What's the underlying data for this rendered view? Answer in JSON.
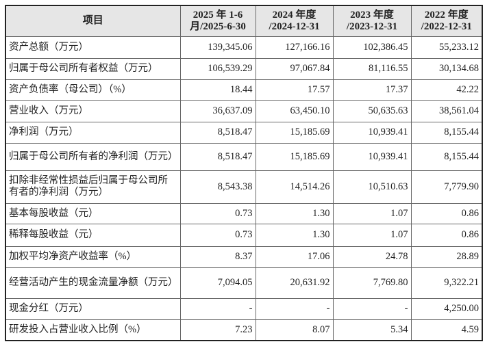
{
  "table": {
    "headers": [
      "项目",
      "2025年1-6月/2025-6-30",
      "2024年度/2024-12-31",
      "2023年度/2023-12-31",
      "2022年度/2022-12-31"
    ],
    "header_lines": [
      [
        "项目"
      ],
      [
        "2025 年 1-6",
        "月/2025-6-30"
      ],
      [
        "2024 年度",
        "/2024-12-31"
      ],
      [
        "2023 年度",
        "/2023-12-31"
      ],
      [
        "2022 年度",
        "/2022-12-31"
      ]
    ],
    "rows": [
      [
        "资产总额（万元）",
        "139,345.06",
        "127,166.16",
        "102,386.45",
        "55,233.12"
      ],
      [
        "归属于母公司所有者权益（万元）",
        "106,539.29",
        "97,067.84",
        "81,116.55",
        "30,134.68"
      ],
      [
        "资产负债率（母公司）（%）",
        "18.44",
        "17.57",
        "17.37",
        "42.22"
      ],
      [
        "营业收入（万元）",
        "36,637.09",
        "63,450.10",
        "50,635.63",
        "38,561.04"
      ],
      [
        "净利润（万元）",
        "8,518.47",
        "15,185.69",
        "10,939.41",
        "8,155.44"
      ],
      [
        "归属于母公司所有者的净利润（万元）",
        "8,518.47",
        "15,185.69",
        "10,939.41",
        "8,155.44"
      ],
      [
        "扣除非经常性损益后归属于母公司所有者的净利润（万元）",
        "8,543.38",
        "14,514.26",
        "10,510.63",
        "7,779.90"
      ],
      [
        "基本每股收益（元）",
        "0.73",
        "1.30",
        "1.07",
        "0.86"
      ],
      [
        "稀释每股收益（元）",
        "0.73",
        "1.30",
        "1.07",
        "0.86"
      ],
      [
        "加权平均净资产收益率（%）",
        "8.37",
        "17.06",
        "24.78",
        "28.89"
      ],
      [
        "经营活动产生的现金流量净额（万元）",
        "7,094.05",
        "20,631.92",
        "7,769.80",
        "9,322.21"
      ],
      [
        "现金分红（万元）",
        "-",
        "-",
        "-",
        "4,250.00"
      ],
      [
        "研发投入占营业收入比例（%）",
        "7.23",
        "8.07",
        "5.34",
        "4.59"
      ]
    ]
  }
}
